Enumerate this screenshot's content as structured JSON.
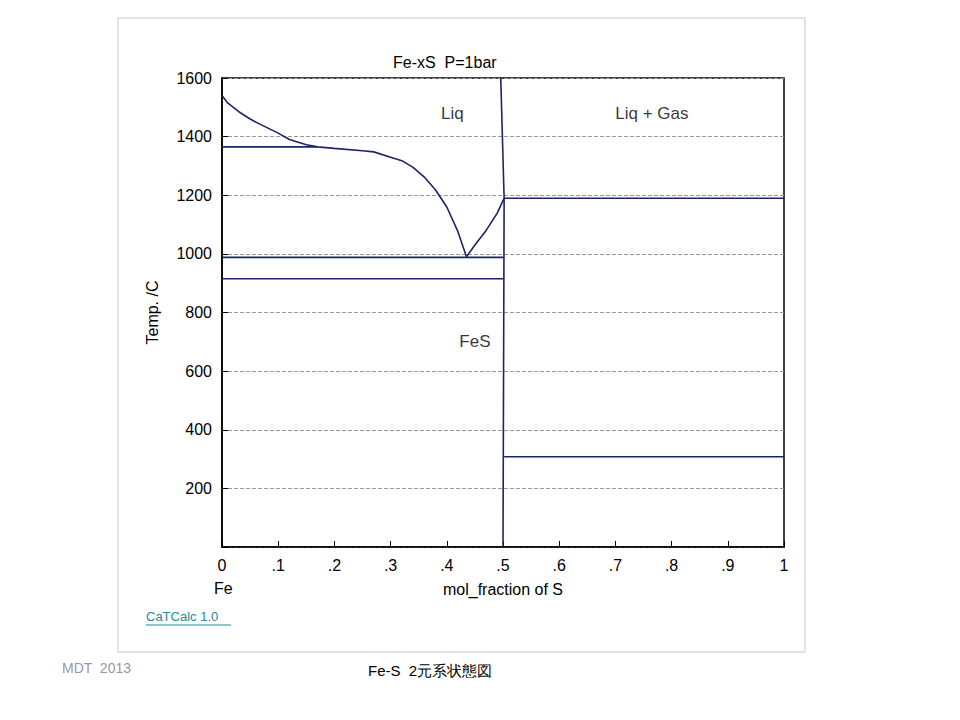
{
  "chart_data": {
    "type": "line",
    "title": "Fe-xS  P=1bar",
    "x_label": "mol_fraction of S",
    "y_label": "Temp. /C",
    "x_end_label": "Fe",
    "source": "CaTCalc 1.0",
    "credit": "MDT  2013",
    "caption": "Fe-S  2元系状態図",
    "xlim": [
      0,
      1
    ],
    "ylim": [
      0,
      1600
    ],
    "xticks": [
      0,
      {
        "value": 0.1,
        "label": ".1"
      },
      {
        "value": 0.2,
        "label": ".2"
      },
      {
        "value": 0.3,
        "label": ".3"
      },
      {
        "value": 0.4,
        "label": ".4"
      },
      {
        "value": 0.5,
        "label": ".5"
      },
      {
        "value": 0.6,
        "label": ".6"
      },
      {
        "value": 0.7,
        "label": ".7"
      },
      {
        "value": 0.8,
        "label": ".8"
      },
      {
        "value": 0.9,
        "label": ".9"
      },
      1
    ],
    "yticks": [
      200,
      400,
      600,
      800,
      1000,
      1200,
      1400,
      1600
    ],
    "grid": true,
    "series": [
      {
        "color": "#1c2466",
        "x": [
          0,
          0.01,
          0.03,
          0.05,
          0.07,
          0.1,
          0.12,
          0.15,
          0.17,
          0.2,
          0.25,
          0.27,
          0.3,
          0.32,
          0.34,
          0.36,
          0.38,
          0.4,
          0.42,
          0.435,
          0.45,
          0.47,
          0.49,
          0.502
        ],
        "values": [
          1540,
          1515,
          1485,
          1460,
          1440,
          1412,
          1390,
          1372,
          1365,
          1360,
          1352,
          1348,
          1330,
          1318,
          1295,
          1262,
          1218,
          1160,
          1075,
          990,
          1030,
          1080,
          1140,
          1190
        ]
      },
      {
        "color": "#1c2466",
        "x": [
          0.496,
          0.502,
          0.5
        ],
        "values": [
          1600,
          1190,
          0
        ]
      },
      {
        "color": "#1c2466",
        "x": [
          0,
          0.17
        ],
        "values": [
          1365,
          1365
        ]
      },
      {
        "color": "#1c2466",
        "x": [
          0,
          0.502
        ],
        "values": [
          988,
          988
        ]
      },
      {
        "color": "#1c2466",
        "x": [
          0,
          0.502
        ],
        "values": [
          915,
          915
        ]
      },
      {
        "color": "#1c2466",
        "x": [
          0.502,
          1
        ],
        "values": [
          1190,
          1190
        ]
      },
      {
        "color": "#1c2466",
        "x": [
          0.502,
          1
        ],
        "values": [
          308,
          308
        ]
      }
    ],
    "annotations": [
      {
        "text": "Liq",
        "x": 0.41,
        "y": 1480
      },
      {
        "text": "Liq + Gas",
        "x": 0.765,
        "y": 1480
      },
      {
        "text": "FeS",
        "x": 0.45,
        "y": 700
      }
    ]
  }
}
